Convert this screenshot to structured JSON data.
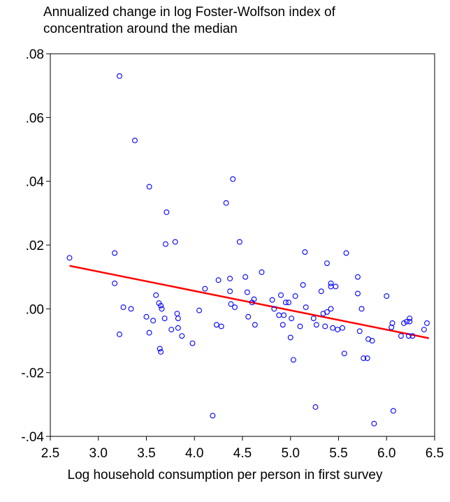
{
  "chart_data": {
    "type": "scatter",
    "title_lines": [
      "Annualized change in log Foster-Wolfson index of",
      "concentration around the median"
    ],
    "xlabel": "Log household consumption per person in first survey",
    "ylabel": "",
    "xlim": [
      2.5,
      6.5
    ],
    "ylim": [
      -0.04,
      0.08
    ],
    "x_ticks": [
      2.5,
      3.0,
      3.5,
      4.0,
      4.5,
      5.0,
      5.5,
      6.0,
      6.5
    ],
    "x_tick_labels": [
      "2.5",
      "3.0",
      "3.5",
      "4.0",
      "4.5",
      "5.0",
      "5.5",
      "6.0",
      "6.5"
    ],
    "y_ticks": [
      -0.04,
      -0.02,
      0.0,
      0.02,
      0.04,
      0.06,
      0.08
    ],
    "y_tick_labels": [
      "-.04",
      "-.02",
      ".00",
      ".02",
      ".04",
      ".06",
      ".08"
    ],
    "grid": false,
    "marker_color": "#0000ff",
    "fit_line_color": "#ff0000",
    "fit_line": {
      "x": [
        2.7,
        6.44
      ],
      "y": [
        0.0135,
        -0.0092
      ]
    },
    "points": [
      [
        2.7,
        0.016
      ],
      [
        3.17,
        0.0175
      ],
      [
        3.17,
        0.008
      ],
      [
        3.22,
        0.073
      ],
      [
        3.22,
        -0.008
      ],
      [
        3.26,
        0.0005
      ],
      [
        3.34,
        0.0
      ],
      [
        3.38,
        0.0528
      ],
      [
        3.5,
        -0.0025
      ],
      [
        3.53,
        0.0383
      ],
      [
        3.53,
        -0.0075
      ],
      [
        3.57,
        -0.0037
      ],
      [
        3.6,
        0.0043
      ],
      [
        3.63,
        0.0018
      ],
      [
        3.64,
        -0.0125
      ],
      [
        3.65,
        -0.0135
      ],
      [
        3.65,
        0.001
      ],
      [
        3.66,
        0.0
      ],
      [
        3.69,
        -0.003
      ],
      [
        3.7,
        0.0203
      ],
      [
        3.71,
        0.0303
      ],
      [
        3.76,
        -0.0065
      ],
      [
        3.8,
        0.021
      ],
      [
        3.82,
        -0.0015
      ],
      [
        3.83,
        -0.006
      ],
      [
        3.83,
        -0.003
      ],
      [
        3.87,
        -0.0085
      ],
      [
        3.98,
        -0.0108
      ],
      [
        4.05,
        -0.0005
      ],
      [
        4.11,
        0.0063
      ],
      [
        4.19,
        -0.0335
      ],
      [
        4.23,
        -0.005
      ],
      [
        4.25,
        0.009
      ],
      [
        4.28,
        -0.0055
      ],
      [
        4.33,
        0.0332
      ],
      [
        4.37,
        0.0095
      ],
      [
        4.37,
        0.0055
      ],
      [
        4.38,
        0.0015
      ],
      [
        4.4,
        0.0407
      ],
      [
        4.42,
        0.0005
      ],
      [
        4.47,
        0.021
      ],
      [
        4.53,
        0.01
      ],
      [
        4.55,
        0.0052
      ],
      [
        4.56,
        -0.0025
      ],
      [
        4.6,
        0.002
      ],
      [
        4.62,
        0.003
      ],
      [
        4.63,
        -0.005
      ],
      [
        4.7,
        0.0115
      ],
      [
        4.81,
        0.0028
      ],
      [
        4.83,
        0.0
      ],
      [
        4.88,
        -0.002
      ],
      [
        4.9,
        0.0043
      ],
      [
        4.92,
        -0.005
      ],
      [
        4.93,
        -0.002
      ],
      [
        4.95,
        0.002
      ],
      [
        4.98,
        0.002
      ],
      [
        5.0,
        -0.009
      ],
      [
        5.01,
        -0.003
      ],
      [
        5.03,
        -0.016
      ],
      [
        5.05,
        0.004
      ],
      [
        5.1,
        -0.0055
      ],
      [
        5.13,
        0.0075
      ],
      [
        5.15,
        0.0178
      ],
      [
        5.16,
        0.0005
      ],
      [
        5.24,
        -0.003
      ],
      [
        5.26,
        -0.0308
      ],
      [
        5.27,
        -0.005
      ],
      [
        5.32,
        0.0055
      ],
      [
        5.34,
        -0.0015
      ],
      [
        5.36,
        -0.0055
      ],
      [
        5.38,
        0.0143
      ],
      [
        5.38,
        -0.001
      ],
      [
        5.42,
        0.008
      ],
      [
        5.42,
        0.007
      ],
      [
        5.42,
        0.0
      ],
      [
        5.44,
        -0.006
      ],
      [
        5.47,
        0.007
      ],
      [
        5.49,
        -0.0065
      ],
      [
        5.54,
        -0.006
      ],
      [
        5.56,
        -0.014
      ],
      [
        5.58,
        0.0175
      ],
      [
        5.7,
        0.01
      ],
      [
        5.7,
        0.0048
      ],
      [
        5.72,
        -0.007
      ],
      [
        5.74,
        0.0
      ],
      [
        5.76,
        -0.0155
      ],
      [
        5.8,
        -0.0155
      ],
      [
        5.81,
        -0.0095
      ],
      [
        5.85,
        -0.01
      ],
      [
        5.87,
        -0.036
      ],
      [
        6.0,
        0.004
      ],
      [
        6.05,
        -0.0058
      ],
      [
        6.06,
        -0.0045
      ],
      [
        6.07,
        -0.032
      ],
      [
        6.15,
        -0.0085
      ],
      [
        6.18,
        -0.0045
      ],
      [
        6.21,
        -0.004
      ],
      [
        6.23,
        -0.0085
      ],
      [
        6.24,
        -0.003
      ],
      [
        6.24,
        -0.004
      ],
      [
        6.27,
        -0.0085
      ],
      [
        6.39,
        -0.0065
      ],
      [
        6.42,
        -0.0045
      ]
    ]
  }
}
